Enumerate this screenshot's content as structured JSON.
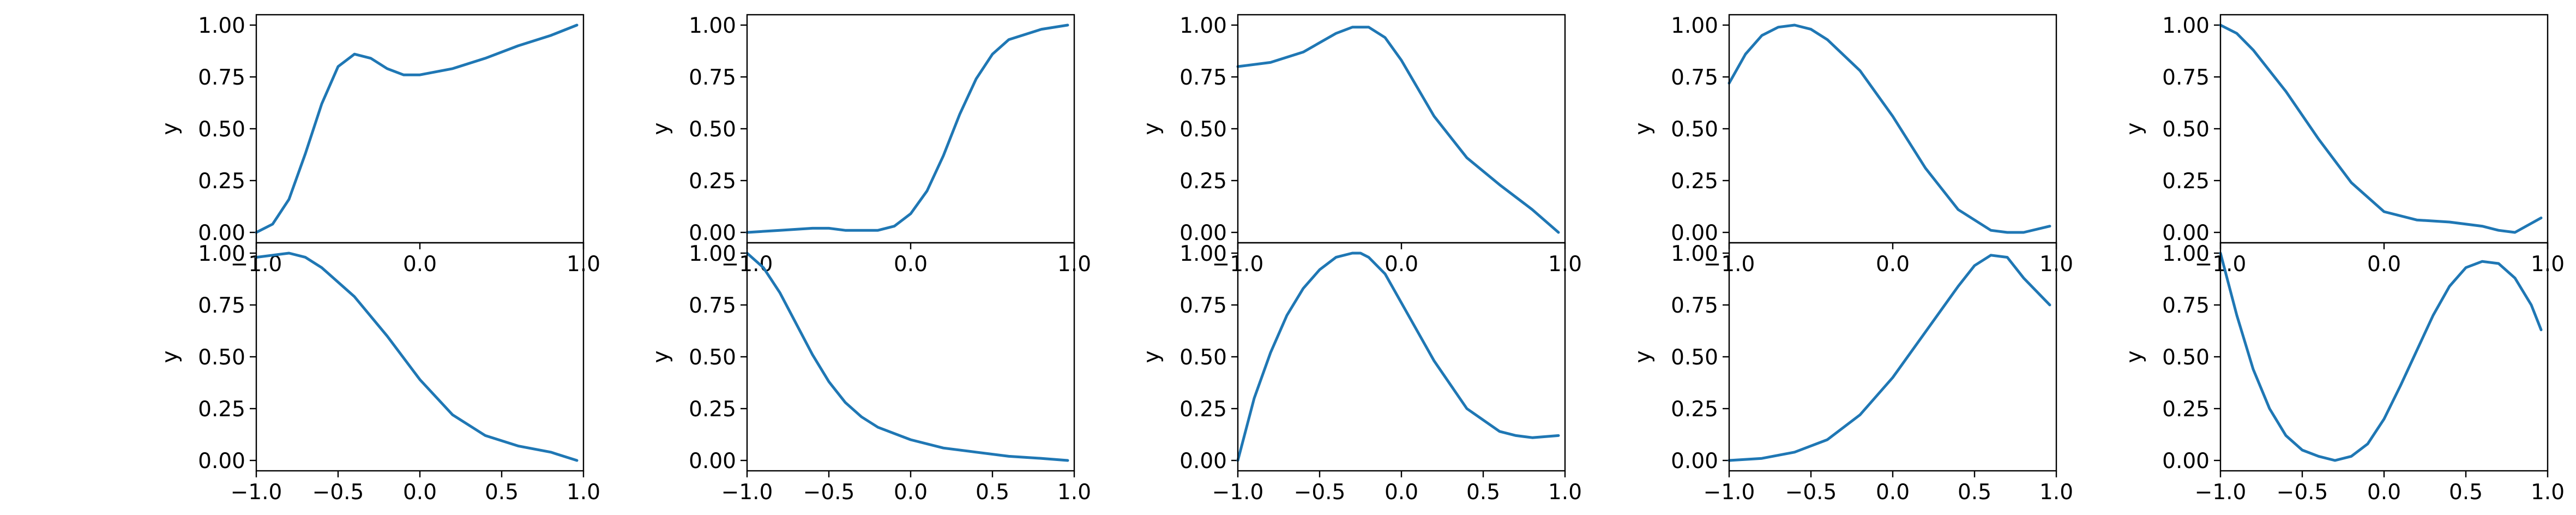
{
  "chart_data": [
    {
      "type": "line",
      "ylabel": "y",
      "xlim": [
        -1,
        1
      ],
      "ylim": [
        -0.05,
        1.05
      ],
      "grid": false,
      "xticks": [
        "−1.0",
        "0.0",
        "1.0"
      ],
      "yticks": [
        "0.00",
        "0.25",
        "0.50",
        "0.75",
        "1.00"
      ],
      "series": [
        {
          "x": [
            -1,
            -0.9,
            -0.8,
            -0.7,
            -0.6,
            -0.5,
            -0.4,
            -0.3,
            -0.2,
            -0.1,
            0,
            0.2,
            0.4,
            0.6,
            0.8,
            0.96
          ],
          "y": [
            0.0,
            0.04,
            0.16,
            0.38,
            0.62,
            0.8,
            0.86,
            0.84,
            0.79,
            0.76,
            0.76,
            0.79,
            0.84,
            0.9,
            0.95,
            1.0
          ],
          "color": "#1f77b4"
        }
      ]
    },
    {
      "type": "line",
      "ylabel": "y",
      "xlim": [
        -1,
        1
      ],
      "ylim": [
        -0.05,
        1.05
      ],
      "grid": false,
      "xticks": [
        "−1.0",
        "0.0",
        "1.0"
      ],
      "yticks": [
        "0.00",
        "0.25",
        "0.50",
        "0.75",
        "1.00"
      ],
      "series": [
        {
          "x": [
            -1,
            -0.8,
            -0.6,
            -0.5,
            -0.4,
            -0.2,
            -0.1,
            0,
            0.1,
            0.2,
            0.3,
            0.4,
            0.5,
            0.6,
            0.8,
            0.96
          ],
          "y": [
            0.0,
            0.01,
            0.02,
            0.02,
            0.01,
            0.01,
            0.03,
            0.09,
            0.2,
            0.37,
            0.57,
            0.74,
            0.86,
            0.93,
            0.98,
            1.0
          ],
          "color": "#1f77b4"
        }
      ]
    },
    {
      "type": "line",
      "ylabel": "y",
      "xlim": [
        -1,
        1
      ],
      "ylim": [
        -0.05,
        1.05
      ],
      "grid": false,
      "xticks": [
        "−1.0",
        "0.0",
        "1.0"
      ],
      "yticks": [
        "0.00",
        "0.25",
        "0.50",
        "0.75",
        "1.00"
      ],
      "series": [
        {
          "x": [
            -1,
            -0.8,
            -0.6,
            -0.4,
            -0.3,
            -0.2,
            -0.1,
            0,
            0.2,
            0.4,
            0.6,
            0.8,
            0.96
          ],
          "y": [
            0.8,
            0.82,
            0.87,
            0.96,
            0.99,
            0.99,
            0.94,
            0.83,
            0.56,
            0.36,
            0.23,
            0.11,
            0.0
          ],
          "color": "#1f77b4"
        }
      ]
    },
    {
      "type": "line",
      "ylabel": "y",
      "xlim": [
        -1,
        1
      ],
      "ylim": [
        -0.05,
        1.05
      ],
      "grid": false,
      "xticks": [
        "−1.0",
        "0.0",
        "1.0"
      ],
      "yticks": [
        "0.00",
        "0.25",
        "0.50",
        "0.75",
        "1.00"
      ],
      "series": [
        {
          "x": [
            -1,
            -0.9,
            -0.8,
            -0.7,
            -0.6,
            -0.5,
            -0.4,
            -0.2,
            0,
            0.2,
            0.4,
            0.6,
            0.7,
            0.8,
            0.96
          ],
          "y": [
            0.72,
            0.86,
            0.95,
            0.99,
            1.0,
            0.98,
            0.93,
            0.78,
            0.56,
            0.31,
            0.11,
            0.01,
            0.0,
            0.0,
            0.03
          ],
          "color": "#1f77b4"
        }
      ]
    },
    {
      "type": "line",
      "ylabel": "y",
      "xlim": [
        -1,
        1
      ],
      "ylim": [
        -0.05,
        1.05
      ],
      "grid": false,
      "xticks": [
        "−1.0",
        "0.0",
        "1.0"
      ],
      "yticks": [
        "0.00",
        "0.25",
        "0.50",
        "0.75",
        "1.00"
      ],
      "series": [
        {
          "x": [
            -1,
            -0.9,
            -0.8,
            -0.6,
            -0.4,
            -0.2,
            0,
            0.2,
            0.4,
            0.6,
            0.7,
            0.8,
            0.96
          ],
          "y": [
            1.0,
            0.96,
            0.88,
            0.68,
            0.45,
            0.24,
            0.1,
            0.06,
            0.05,
            0.03,
            0.01,
            0.0,
            0.07
          ],
          "color": "#1f77b4"
        }
      ]
    },
    {
      "type": "line",
      "ylabel": "y",
      "xlim": [
        -1,
        1
      ],
      "ylim": [
        -0.05,
        1.05
      ],
      "grid": false,
      "xticks": [
        "−1.0",
        "−0.5",
        "0.0",
        "0.5",
        "1.0"
      ],
      "yticks": [
        "0.00",
        "0.25",
        "0.50",
        "0.75",
        "1.00"
      ],
      "series": [
        {
          "x": [
            -1,
            -0.9,
            -0.8,
            -0.7,
            -0.6,
            -0.4,
            -0.2,
            0,
            0.2,
            0.4,
            0.6,
            0.8,
            0.96
          ],
          "y": [
            0.98,
            0.99,
            1.0,
            0.98,
            0.93,
            0.79,
            0.6,
            0.39,
            0.22,
            0.12,
            0.07,
            0.04,
            0.0
          ],
          "color": "#1f77b4"
        }
      ]
    },
    {
      "type": "line",
      "ylabel": "y",
      "xlim": [
        -1,
        1
      ],
      "ylim": [
        -0.05,
        1.05
      ],
      "grid": false,
      "xticks": [
        "−1.0",
        "−0.5",
        "0.0",
        "0.5",
        "1.0"
      ],
      "yticks": [
        "0.00",
        "0.25",
        "0.50",
        "0.75",
        "1.00"
      ],
      "series": [
        {
          "x": [
            -1,
            -0.9,
            -0.8,
            -0.7,
            -0.6,
            -0.5,
            -0.4,
            -0.3,
            -0.2,
            0,
            0.2,
            0.4,
            0.6,
            0.8,
            0.96
          ],
          "y": [
            1.0,
            0.93,
            0.81,
            0.66,
            0.51,
            0.38,
            0.28,
            0.21,
            0.16,
            0.1,
            0.06,
            0.04,
            0.02,
            0.01,
            0.0
          ],
          "color": "#1f77b4"
        }
      ]
    },
    {
      "type": "line",
      "ylabel": "y",
      "xlim": [
        -1,
        1
      ],
      "ylim": [
        -0.05,
        1.05
      ],
      "grid": false,
      "xticks": [
        "−1.0",
        "−0.5",
        "0.0",
        "0.5",
        "1.0"
      ],
      "yticks": [
        "0.00",
        "0.25",
        "0.50",
        "0.75",
        "1.00"
      ],
      "series": [
        {
          "x": [
            -1,
            -0.9,
            -0.8,
            -0.7,
            -0.6,
            -0.5,
            -0.4,
            -0.3,
            -0.25,
            -0.2,
            -0.1,
            0,
            0.2,
            0.4,
            0.6,
            0.7,
            0.8,
            0.96
          ],
          "y": [
            0.0,
            0.3,
            0.52,
            0.7,
            0.83,
            0.92,
            0.98,
            1.0,
            1.0,
            0.98,
            0.9,
            0.76,
            0.48,
            0.25,
            0.14,
            0.12,
            0.11,
            0.12
          ],
          "color": "#1f77b4"
        }
      ]
    },
    {
      "type": "line",
      "ylabel": "y",
      "xlim": [
        -1,
        1
      ],
      "ylim": [
        -0.05,
        1.05
      ],
      "grid": false,
      "xticks": [
        "−1.0",
        "−0.5",
        "0.0",
        "0.5",
        "1.0"
      ],
      "yticks": [
        "0.00",
        "0.25",
        "0.50",
        "0.75",
        "1.00"
      ],
      "series": [
        {
          "x": [
            -1,
            -0.8,
            -0.6,
            -0.4,
            -0.2,
            0,
            0.2,
            0.4,
            0.5,
            0.6,
            0.7,
            0.8,
            0.96
          ],
          "y": [
            0.0,
            0.01,
            0.04,
            0.1,
            0.22,
            0.4,
            0.62,
            0.84,
            0.94,
            0.99,
            0.98,
            0.88,
            0.75
          ],
          "color": "#1f77b4"
        }
      ]
    },
    {
      "type": "line",
      "ylabel": "y",
      "xlim": [
        -1,
        1
      ],
      "ylim": [
        -0.05,
        1.05
      ],
      "grid": false,
      "xticks": [
        "−1.0",
        "−0.5",
        "0.0",
        "0.5",
        "1.0"
      ],
      "yticks": [
        "0.00",
        "0.25",
        "0.50",
        "0.75",
        "1.00"
      ],
      "series": [
        {
          "x": [
            -1,
            -0.9,
            -0.8,
            -0.7,
            -0.6,
            -0.5,
            -0.4,
            -0.3,
            -0.2,
            -0.1,
            0,
            0.1,
            0.2,
            0.3,
            0.4,
            0.5,
            0.6,
            0.7,
            0.8,
            0.9,
            0.96
          ],
          "y": [
            1.0,
            0.7,
            0.44,
            0.25,
            0.12,
            0.05,
            0.02,
            0.0,
            0.02,
            0.08,
            0.2,
            0.36,
            0.53,
            0.7,
            0.84,
            0.93,
            0.96,
            0.95,
            0.88,
            0.75,
            0.63
          ],
          "color": "#1f77b4"
        }
      ]
    }
  ]
}
